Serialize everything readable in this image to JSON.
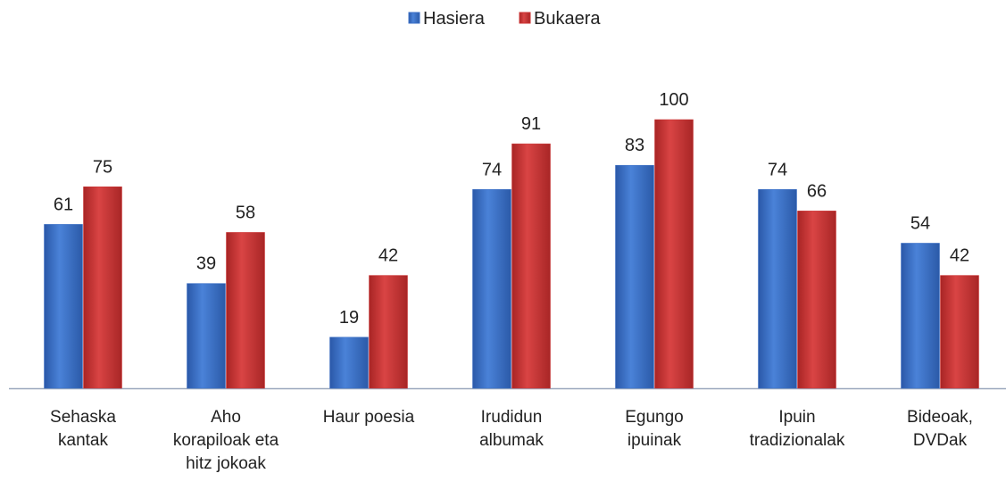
{
  "chart_data": {
    "type": "bar",
    "categories": [
      "Sehaska\nkantak",
      "Aho\nkorapiloak eta\nhitz jokoak",
      "Haur poesia",
      "Irudidun\nalbumak",
      "Egungo\nipuinak",
      "Ipuin\ntradizionalak",
      "Bideoak,\nDVDak"
    ],
    "series": [
      {
        "name": "Hasiera",
        "color": "#3b6fc6",
        "values": [
          61,
          39,
          19,
          74,
          83,
          74,
          54
        ]
      },
      {
        "name": "Bukaera",
        "color": "#cc3333",
        "values": [
          75,
          58,
          42,
          91,
          100,
          66,
          42
        ]
      }
    ],
    "ylim": [
      0,
      100
    ],
    "legend": "top"
  }
}
